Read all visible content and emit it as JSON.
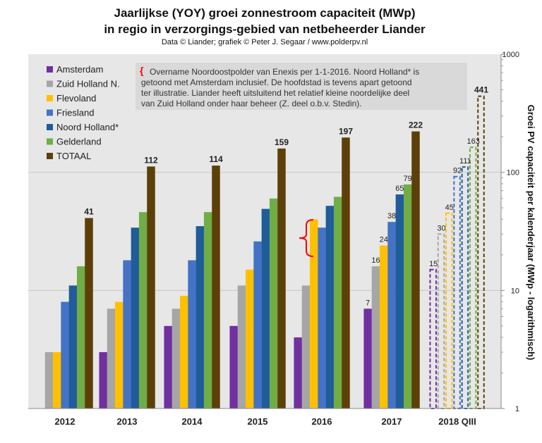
{
  "title_line1": "Jaarlijkse (YOY) groei zonnestroom capaciteit (MWp)",
  "title_line2": "in regio in verzorgings-gebied van netbeheerder Liander",
  "subtitle": "Data © Liander; grafiek © Peter J. Segaar / www.polderpv.nl",
  "annotation": {
    "bracket": "{",
    "lines": [
      "Overname Noordoostpolder van Enexis per 1-1-2016. Noord Holland* is",
      "getoond met Amsterdam inclusief. De hoofdstad is tevens apart getoond",
      "ter illustratie. Liander heeft uitsluitend het relatief kleine noordelijke deel",
      "van Zuid Holland onder haar beheer (Z. deel o.b.v. Stedin)."
    ]
  },
  "colors": {
    "Amsterdam": "#7030a0",
    "Zuid Holland N.": "#a6a6a6",
    "Flevoland": "#ffc000",
    "Friesland": "#4472c4",
    "Noord Holland*": "#1f5c99",
    "Gelderland": "#70ad47",
    "TOTAAL": "#5c4008",
    "plot_bg": "#e7e7e7",
    "annotation_bg": "#d9d9d9",
    "bracket": "#ff0000"
  },
  "chart_data": {
    "type": "bar",
    "yscale": "log",
    "ylim": [
      1,
      1000
    ],
    "ylabel": "Groei PV capaciteit per kalenderjaar (MWp - logarithmisch)",
    "yticks": [
      "1",
      "10",
      "100",
      "1000"
    ],
    "categories": [
      "2012",
      "2013",
      "2014",
      "2015",
      "2016",
      "2017",
      "2018 QIII"
    ],
    "series": [
      {
        "name": "Amsterdam",
        "values": [
          null,
          3,
          5,
          5,
          4,
          7,
          15
        ]
      },
      {
        "name": "Zuid Holland N.",
        "values": [
          3,
          7,
          7,
          11,
          11,
          16,
          30
        ]
      },
      {
        "name": "Flevoland",
        "values": [
          3,
          8,
          9,
          15,
          40,
          24,
          45
        ]
      },
      {
        "name": "Friesland",
        "values": [
          8,
          18,
          18,
          26,
          34,
          38,
          92
        ]
      },
      {
        "name": "Noord Holland*",
        "values": [
          11,
          34,
          35,
          49,
          52,
          65,
          111
        ]
      },
      {
        "name": "Gelderland",
        "values": [
          16,
          46,
          46,
          60,
          62,
          79,
          163
        ]
      },
      {
        "name": "TOTAAL",
        "values": [
          41,
          112,
          114,
          159,
          197,
          222,
          441
        ]
      }
    ],
    "data_labels": [
      {
        "category": "2012",
        "series": "TOTAAL",
        "text": "41"
      },
      {
        "category": "2013",
        "series": "TOTAAL",
        "text": "112"
      },
      {
        "category": "2014",
        "series": "TOTAAL",
        "text": "114"
      },
      {
        "category": "2015",
        "series": "TOTAAL",
        "text": "159"
      },
      {
        "category": "2016",
        "series": "TOTAAL",
        "text": "197"
      },
      {
        "category": "2017",
        "series": "TOTAAL",
        "text": "222"
      },
      {
        "category": "2017",
        "series": "Amsterdam",
        "text": "7"
      },
      {
        "category": "2017",
        "series": "Zuid Holland N.",
        "text": "16"
      },
      {
        "category": "2017",
        "series": "Flevoland",
        "text": "24"
      },
      {
        "category": "2017",
        "series": "Friesland",
        "text": "38"
      },
      {
        "category": "2017",
        "series": "Noord Holland*",
        "text": "65"
      },
      {
        "category": "2017",
        "series": "Gelderland",
        "text": "79"
      },
      {
        "category": "2018 QIII",
        "series": "Amsterdam",
        "text": "15"
      },
      {
        "category": "2018 QIII",
        "series": "Zuid Holland N.",
        "text": "30"
      },
      {
        "category": "2018 QIII",
        "series": "Flevoland",
        "text": "45"
      },
      {
        "category": "2018 QIII",
        "series": "Friesland",
        "text": "92"
      },
      {
        "category": "2018 QIII",
        "series": "Noord Holland*",
        "text": "111"
      },
      {
        "category": "2018 QIII",
        "series": "Gelderland",
        "text": "163"
      },
      {
        "category": "2018 QIII",
        "series": "TOTAAL",
        "text": "441"
      }
    ],
    "dashed_categories": [
      "2018 QIII"
    ],
    "legend_position": "top-left",
    "grid": true
  }
}
